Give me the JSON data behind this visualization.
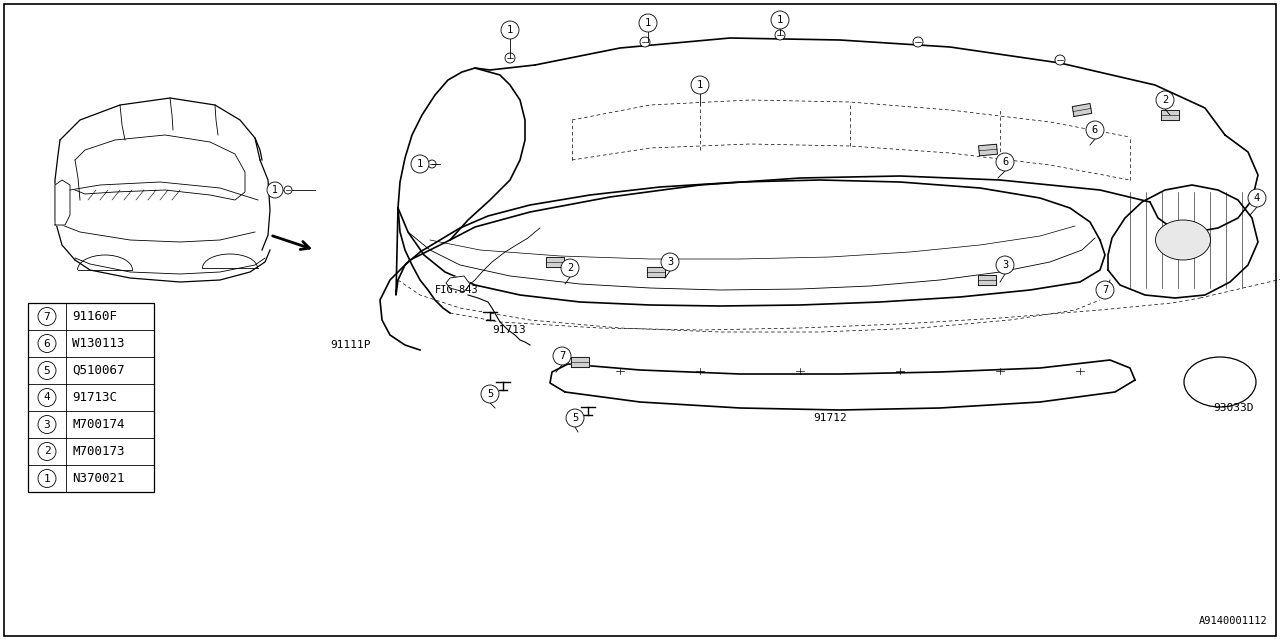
{
  "bg_color": "#ffffff",
  "line_color": "#000000",
  "parts_table": [
    {
      "num": "1",
      "code": "N370021"
    },
    {
      "num": "2",
      "code": "M700173"
    },
    {
      "num": "3",
      "code": "M700174"
    },
    {
      "num": "4",
      "code": "91713C"
    },
    {
      "num": "5",
      "code": "Q510067"
    },
    {
      "num": "6",
      "code": "W130113"
    },
    {
      "num": "7",
      "code": "91160F"
    }
  ],
  "diagram_num": "A9140001112",
  "label_91713": "91713",
  "label_91111P": "91111P",
  "label_91712": "91712",
  "label_93033D": "93033D",
  "label_fig843": "FIG.843"
}
